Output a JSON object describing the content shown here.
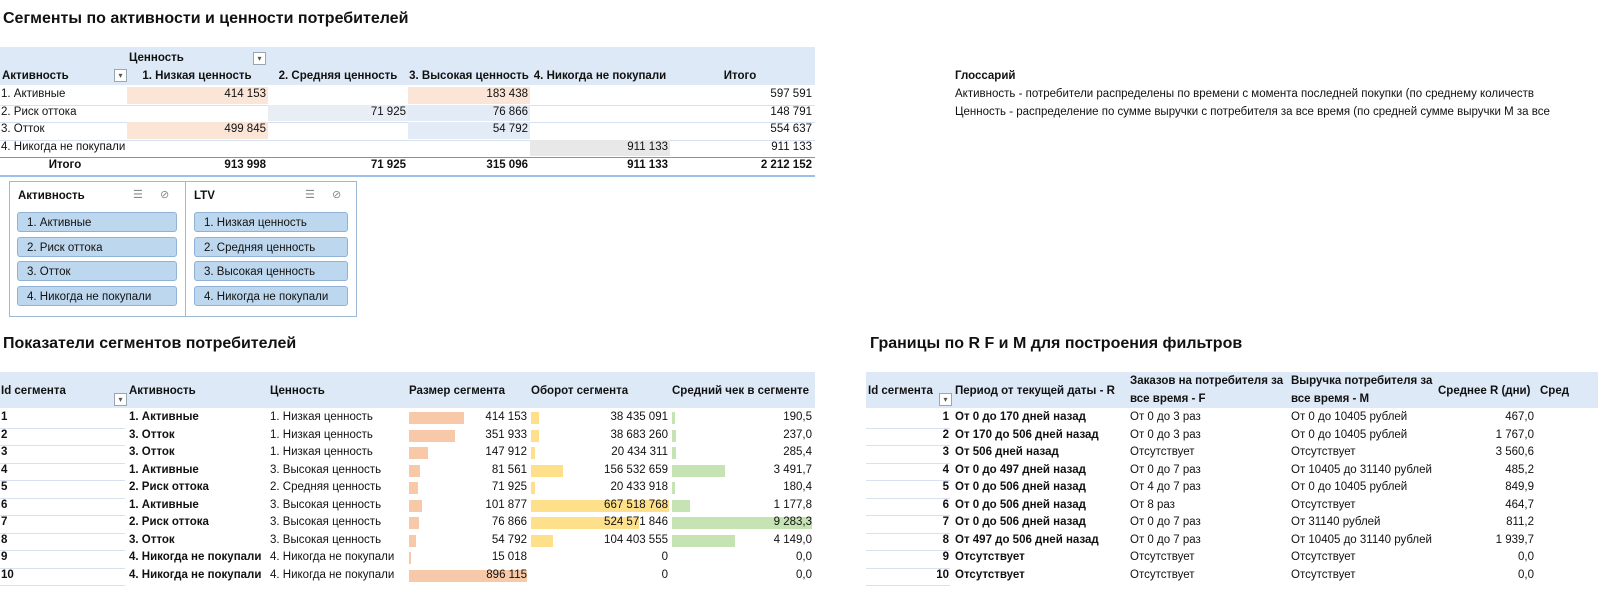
{
  "title": "Сегменты по активности и ценности потребителей",
  "pivot": {
    "col_group_label": "Ценность",
    "row_header": "Активность",
    "columns": [
      "1. Низкая ценность",
      "2. Средняя ценность",
      "3. Высокая ценность",
      "4. Никогда не покупали",
      "Итого"
    ],
    "rows": [
      {
        "label": "1. Активные",
        "values": [
          "414 153",
          "",
          "183 438",
          "",
          "597 591"
        ]
      },
      {
        "label": "2. Риск оттока",
        "values": [
          "",
          "71 925",
          "76 866",
          "",
          "148 791"
        ]
      },
      {
        "label": "3. Отток",
        "values": [
          "499 845",
          "",
          "54 792",
          "",
          "554 637"
        ]
      },
      {
        "label": "4. Никогда не покупали",
        "values": [
          "",
          "",
          "",
          "911 133",
          "911 133"
        ]
      }
    ],
    "total": {
      "label": "Итого",
      "values": [
        "913 998",
        "71 925",
        "315 096",
        "911 133",
        "2 212 152"
      ]
    }
  },
  "slicers": [
    {
      "title": "Активность",
      "items": [
        "1. Активные",
        "2. Риск оттока",
        "3. Отток",
        "4. Никогда не покупали"
      ]
    },
    {
      "title": "LTV",
      "items": [
        "1. Низкая ценность",
        "2. Средняя ценность",
        "3. Высокая ценность",
        "4. Никогда не покупали"
      ]
    }
  ],
  "glossary": {
    "title": "Глоссарий",
    "line1": "Активность - потребители распределены по времени с момента последней покупки (по среднему количеств",
    "line2": "Ценность - распределение по сумме выручки с потребителя за все время (по средней сумме выручки М за все"
  },
  "segments_title": "Показатели сегментов потребителей",
  "segments": {
    "headers": [
      "Id сегмента",
      "Активность",
      "Ценность",
      "Размер сегмента",
      "Оборот сегмента",
      "Средний чек в сегменте"
    ],
    "rows": [
      {
        "id": "1",
        "act": "1. Активные",
        "val": "1. Низкая ценность",
        "size": "414 153",
        "size_v": 414153,
        "turn": "38 435 091",
        "turn_v": 38435091,
        "avg": "190,5",
        "avg_v": 190.5
      },
      {
        "id": "2",
        "act": "3. Отток",
        "val": "1. Низкая ценность",
        "size": "351 933",
        "size_v": 351933,
        "turn": "38 683 260",
        "turn_v": 38683260,
        "avg": "237,0",
        "avg_v": 237.0
      },
      {
        "id": "3",
        "act": "3. Отток",
        "val": "1. Низкая ценность",
        "size": "147 912",
        "size_v": 147912,
        "turn": "20 434 311",
        "turn_v": 20434311,
        "avg": "285,4",
        "avg_v": 285.4
      },
      {
        "id": "4",
        "act": "1. Активные",
        "val": "3. Высокая ценность",
        "size": "81 561",
        "size_v": 81561,
        "turn": "156 532 659",
        "turn_v": 156532659,
        "avg": "3 491,7",
        "avg_v": 3491.7
      },
      {
        "id": "5",
        "act": "2. Риск оттока",
        "val": "2. Средняя ценность",
        "size": "71 925",
        "size_v": 71925,
        "turn": "20 433 918",
        "turn_v": 20433918,
        "avg": "180,4",
        "avg_v": 180.4
      },
      {
        "id": "6",
        "act": "1. Активные",
        "val": "3. Высокая ценность",
        "size": "101 877",
        "size_v": 101877,
        "turn": "667 518 768",
        "turn_v": 667518768,
        "avg": "1 177,8",
        "avg_v": 1177.8
      },
      {
        "id": "7",
        "act": "2. Риск оттока",
        "val": "3. Высокая ценность",
        "size": "76 866",
        "size_v": 76866,
        "turn": "524 571 846",
        "turn_v": 524571846,
        "avg": "9 283,3",
        "avg_v": 9283.3
      },
      {
        "id": "8",
        "act": "3. Отток",
        "val": "3. Высокая ценность",
        "size": "54 792",
        "size_v": 54792,
        "turn": "104 403 555",
        "turn_v": 104403555,
        "avg": "4 149,0",
        "avg_v": 4149.0
      },
      {
        "id": "9",
        "act": "4. Никогда не покупали",
        "val": "4. Никогда не покупали",
        "size": "15 018",
        "size_v": 15018,
        "turn": "0",
        "turn_v": 0,
        "avg": "0,0",
        "avg_v": 0
      },
      {
        "id": "10",
        "act": "4. Никогда не покупали",
        "val": "4. Никогда не покупали",
        "size": "896 115",
        "size_v": 896115,
        "turn": "0",
        "turn_v": 0,
        "avg": "0,0",
        "avg_v": 0
      }
    ]
  },
  "bounds_title": "Границы по R F и M для построения фильтров",
  "bounds": {
    "headers": [
      "Id сегмента",
      "Период от текущей даты - R",
      "Заказов на потребителя за",
      "все время - F",
      "Выручка потребителя за",
      "все время - M",
      "Среднее R (дни)",
      "Сред"
    ],
    "rows": [
      {
        "id": "1",
        "r": "От 0 до 170 дней назад",
        "f": "От 0 до 3 раз",
        "m": "От 0 до 10405 рублей",
        "avg": "467,0"
      },
      {
        "id": "2",
        "r": "От 170 до 506 дней назад",
        "f": "От 0 до 3 раз",
        "m": "От 0 до 10405 рублей",
        "avg": "1 767,0"
      },
      {
        "id": "3",
        "r": "От 506 дней назад",
        "f": "Отсутствует",
        "m": "Отсутствует",
        "avg": "3 560,6"
      },
      {
        "id": "4",
        "r": "От 0 до 497 дней назад",
        "f": "От 0 до 7 раз",
        "m": "От 10405 до 31140 рублей",
        "avg": "485,2"
      },
      {
        "id": "5",
        "r": "От 0 до 506 дней назад",
        "f": "От 4 до 7 раз",
        "m": "От 0 до 10405 рублей",
        "avg": "849,9"
      },
      {
        "id": "6",
        "r": "От 0 до 506 дней назад",
        "f": "От 8 раз",
        "m": "Отсутствует",
        "avg": "464,7"
      },
      {
        "id": "7",
        "r": "От 0 до 506 дней назад",
        "f": "От 0 до 7 раз",
        "m": "От 31140 рублей",
        "avg": "811,2"
      },
      {
        "id": "8",
        "r": "От 497 до 506 дней назад",
        "f": "От 0 до 7 раз",
        "m": "От 10405 до 31140 рублей",
        "avg": "1 939,7"
      },
      {
        "id": "9",
        "r": "Отсутствует",
        "f": "Отсутствует",
        "m": "Отсутствует",
        "avg": "0,0"
      },
      {
        "id": "10",
        "r": "Отсутствует",
        "f": "Отсутствует",
        "m": "Отсутствует",
        "avg": "0,0"
      }
    ]
  },
  "colors": {
    "header_band": "#dde9f6",
    "size_bar": "#f8c9a8",
    "turn_bar": "#ffe08a",
    "avg_bar": "#c6e3b4",
    "slicer_item": "#bdd7ee"
  }
}
